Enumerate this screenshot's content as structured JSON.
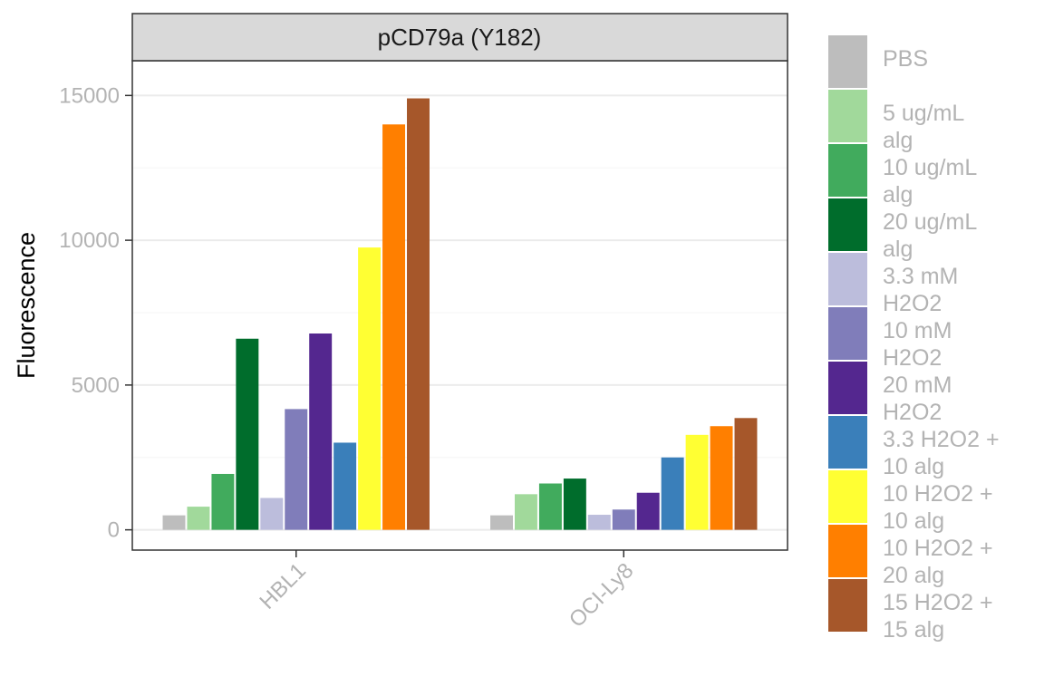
{
  "chart_data": {
    "type": "bar",
    "facet_title": "pCD79a (Y182)",
    "categories": [
      "HBL1",
      "OCI-Ly8"
    ],
    "ylabel": "Fluorescence",
    "xlabel": "",
    "ylim": [
      -700,
      16200
    ],
    "yticks": [
      0,
      5000,
      10000,
      15000
    ],
    "grid": true,
    "legend_position": "right",
    "series": [
      {
        "label_lines": [
          "PBS"
        ],
        "color": "#bdbdbd",
        "values": [
          500,
          500
        ]
      },
      {
        "label_lines": [
          "5 ug/mL",
          "alg"
        ],
        "color": "#a1d99b",
        "values": [
          800,
          1230
        ]
      },
      {
        "label_lines": [
          "10 ug/mL",
          "alg"
        ],
        "color": "#41ab5d",
        "values": [
          1930,
          1600
        ]
      },
      {
        "label_lines": [
          "20 ug/mL",
          "alg"
        ],
        "color": "#006d2c",
        "values": [
          6600,
          1770
        ]
      },
      {
        "label_lines": [
          "3.3 mM",
          "H2O2"
        ],
        "color": "#bcbddc",
        "values": [
          1100,
          520
        ]
      },
      {
        "label_lines": [
          "10 mM",
          "H2O2"
        ],
        "color": "#807dba",
        "values": [
          4170,
          700
        ]
      },
      {
        "label_lines": [
          "20 mM",
          "H2O2"
        ],
        "color": "#54278f",
        "values": [
          6780,
          1280
        ]
      },
      {
        "label_lines": [
          "3.3 H2O2 +",
          "10 alg"
        ],
        "color": "#3a7fba",
        "values": [
          3010,
          2500
        ]
      },
      {
        "label_lines": [
          "10 H2O2 +",
          "10 alg"
        ],
        "color": "#ffff33",
        "values": [
          9750,
          3280
        ]
      },
      {
        "label_lines": [
          "10 H2O2 +",
          "20 alg"
        ],
        "color": "#ff7f00",
        "values": [
          14000,
          3580
        ]
      },
      {
        "label_lines": [
          "15 H2O2 +",
          "15 alg"
        ],
        "color": "#a6572a",
        "values": [
          14900,
          3860
        ]
      }
    ]
  }
}
